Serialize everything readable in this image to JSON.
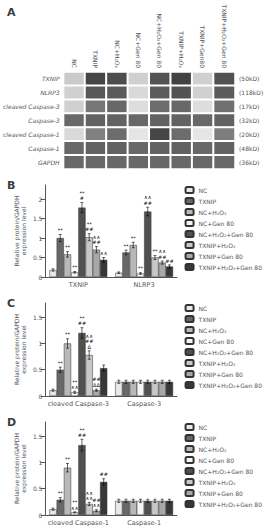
{
  "chart_data": [
    {
      "type": "heatmap",
      "title": "A",
      "x": [
        "NC",
        "TXNIP",
        "NC+H₂O₂",
        "NC+Gen 80",
        "NC+H₂O₂+Gen 80",
        "TXNIP+H₂O₂",
        "TXNIP+Gen80",
        "TXNIP+H₂O₂+Gen 80"
      ],
      "y": [
        "TXNIP",
        "NLRP3",
        "cleaved Caspase-3",
        "Caspase-3",
        "cleaved Caspase-1",
        "Caspase-1",
        "GAPDH"
      ],
      "y2": [
        "(50kD)",
        "(118kD)",
        "(17kD)",
        "(32kD)",
        "(20kD)",
        "(48kD)",
        "(36kD)"
      ],
      "cells": [
        [
          0.25,
          0.88,
          0.85,
          0.22,
          0.82,
          0.9,
          0.22,
          0.83
        ],
        [
          0.22,
          0.8,
          0.78,
          0.18,
          0.78,
          0.82,
          0.22,
          0.78
        ],
        [
          0.22,
          0.65,
          0.72,
          0.16,
          0.7,
          0.72,
          0.16,
          0.68
        ],
        [
          0.72,
          0.75,
          0.75,
          0.72,
          0.75,
          0.75,
          0.72,
          0.75
        ],
        [
          0.18,
          0.6,
          0.7,
          0.12,
          0.88,
          0.7,
          0.12,
          0.62
        ],
        [
          0.72,
          0.75,
          0.75,
          0.72,
          0.75,
          0.75,
          0.72,
          0.75
        ],
        [
          0.72,
          0.72,
          0.72,
          0.72,
          0.72,
          0.72,
          0.72,
          0.72
        ]
      ]
    },
    {
      "type": "bar",
      "title": "B",
      "ylabel": "Relative protein/GAPDH\nexpression level",
      "categories": [
        "TXNIP",
        "NLRP3"
      ],
      "ylim": [
        0,
        2.36
      ],
      "yticks": [
        0,
        0.5,
        1,
        1.5,
        2
      ],
      "grid": false,
      "legend": "right",
      "series": [
        {
          "name": "NC",
          "color": "#e8e8e8",
          "values": [
            0.18,
            0.11
          ],
          "errors": [
            0.03,
            0.02
          ]
        },
        {
          "name": "TXNIP",
          "color": "#686868",
          "values": [
            1.0,
            0.63
          ],
          "errors": [
            0.09,
            0.06
          ],
          "annotations": [
            "**",
            "**"
          ]
        },
        {
          "name": "NC+H₂O₂",
          "color": "#b8b8b8",
          "values": [
            0.58,
            0.82
          ],
          "errors": [
            0.07,
            0.07
          ],
          "annotations": [
            "**",
            "**"
          ]
        },
        {
          "name": "NC+Gen 80",
          "color": "#f5f5f5",
          "values": [
            0.12,
            0.09
          ],
          "errors": [
            0.02,
            0.02
          ],
          "annotations": [
            "**",
            "**"
          ]
        },
        {
          "name": "NC+H₂O₂+Gen 80",
          "color": "#505050",
          "values": [
            1.78,
            1.68
          ],
          "errors": [
            0.13,
            0.11
          ],
          "annotations": [
            "**\n#",
            "∧∧\n##"
          ]
        },
        {
          "name": "TXNIP+H₂O₂",
          "color": "#c8c8c8",
          "values": [
            1.02,
            0.5
          ],
          "errors": [
            0.09,
            0.05
          ],
          "annotations": [
            "**\n##",
            "**"
          ]
        },
        {
          "name": "TXNIP+Gen 80",
          "color": "#a8a8a8",
          "values": [
            0.7,
            0.37
          ],
          "errors": [
            0.08,
            0.04
          ],
          "annotations": [
            "∧∧\n##",
            "∧∧\n##"
          ]
        },
        {
          "name": "TXNIP+H₂O₂+Gen 80",
          "color": "#383838",
          "values": [
            0.44,
            0.27
          ],
          "errors": [
            0.06,
            0.04
          ],
          "annotations": [
            "∧∧",
            "##"
          ]
        }
      ]
    },
    {
      "type": "bar",
      "title": "C",
      "ylabel": "Relative protein/GAPDH\nexpression level",
      "categories": [
        "cleaved Caspase-3",
        "Caspase-3"
      ],
      "ylim": [
        0,
        1.77
      ],
      "yticks": [
        0,
        0.5,
        1,
        1.5
      ],
      "grid": false,
      "legend": "right",
      "series": [
        {
          "name": "NC",
          "color": "#e8e8e8",
          "values": [
            0.11,
            0.27
          ],
          "errors": [
            0.02,
            0.03
          ]
        },
        {
          "name": "TXNIP",
          "color": "#686868",
          "values": [
            0.5,
            0.27
          ],
          "errors": [
            0.05,
            0.03
          ],
          "annotations": [
            "**",
            null
          ]
        },
        {
          "name": "NC+H₂O₂",
          "color": "#b8b8b8",
          "values": [
            1.0,
            0.27
          ],
          "errors": [
            0.09,
            0.03
          ],
          "annotations": [
            "**",
            null
          ]
        },
        {
          "name": "NC+Gen 80",
          "color": "#f5f5f5",
          "values": [
            0.07,
            0.27
          ],
          "errors": [
            0.02,
            0.03
          ],
          "annotations": [
            "**\n∧∧",
            null
          ]
        },
        {
          "name": "NC+H₂O₂+Gen 80",
          "color": "#505050",
          "values": [
            1.2,
            0.27
          ],
          "errors": [
            0.1,
            0.03
          ],
          "annotations": [
            "**\n##",
            null
          ]
        },
        {
          "name": "TXNIP+H₂O₂",
          "color": "#c8c8c8",
          "values": [
            0.78,
            0.27
          ],
          "errors": [
            0.08,
            0.03
          ],
          "annotations": [
            "∧∧\n##\nΔ",
            null
          ]
        },
        {
          "name": "TXNIP+Gen 80",
          "color": "#a8a8a8",
          "values": [
            0.11,
            0.27
          ],
          "errors": [
            0.02,
            0.03
          ],
          "annotations": [
            "##\nΔΔ",
            null
          ]
        },
        {
          "name": "TXNIP+H₂O₂+Gen 80",
          "color": "#383838",
          "values": [
            0.53,
            0.27
          ],
          "errors": [
            0.06,
            0.03
          ]
        }
      ]
    },
    {
      "type": "bar",
      "title": "D",
      "ylabel": "Relative protein/GAPDH\nexpression level",
      "categories": [
        "cleaved Caspase-1",
        "Caspase-1"
      ],
      "ylim": [
        0,
        1.77
      ],
      "yticks": [
        0,
        0.5,
        1,
        1.5
      ],
      "grid": false,
      "legend": "right",
      "series": [
        {
          "name": "NC",
          "color": "#e8e8e8",
          "values": [
            0.11,
            0.27
          ],
          "errors": [
            0.02,
            0.03
          ]
        },
        {
          "name": "TXNIP",
          "color": "#686868",
          "values": [
            0.29,
            0.27
          ],
          "errors": [
            0.04,
            0.03
          ],
          "annotations": [
            "**",
            null
          ]
        },
        {
          "name": "NC+H₂O₂",
          "color": "#b8b8b8",
          "values": [
            0.9,
            0.27
          ],
          "errors": [
            0.08,
            0.03
          ],
          "annotations": [
            "**",
            null
          ]
        },
        {
          "name": "NC+Gen 80",
          "color": "#f5f5f5",
          "values": [
            0.05,
            0.27
          ],
          "errors": [
            0.01,
            0.03
          ],
          "annotations": [
            "**\n∧∧",
            null
          ]
        },
        {
          "name": "NC+H₂O₂+Gen 80",
          "color": "#505050",
          "values": [
            1.33,
            0.27
          ],
          "errors": [
            0.11,
            0.03
          ],
          "annotations": [
            "**\n##",
            null
          ]
        },
        {
          "name": "TXNIP+H₂O₂",
          "color": "#c8c8c8",
          "values": [
            0.21,
            0.27
          ],
          "errors": [
            0.03,
            0.03
          ],
          "annotations": [
            "∧∧\n∧∧",
            null
          ]
        },
        {
          "name": "TXNIP+Gen 80",
          "color": "#a8a8a8",
          "values": [
            0.08,
            0.27
          ],
          "errors": [
            0.02,
            0.03
          ],
          "annotations": [
            "##\n∧∧",
            null
          ]
        },
        {
          "name": "TXNIP+H₂O₂+Gen 80",
          "color": "#383838",
          "values": [
            0.63,
            0.27
          ],
          "errors": [
            0.06,
            0.03
          ],
          "annotations": [
            "##",
            null
          ]
        }
      ]
    }
  ]
}
